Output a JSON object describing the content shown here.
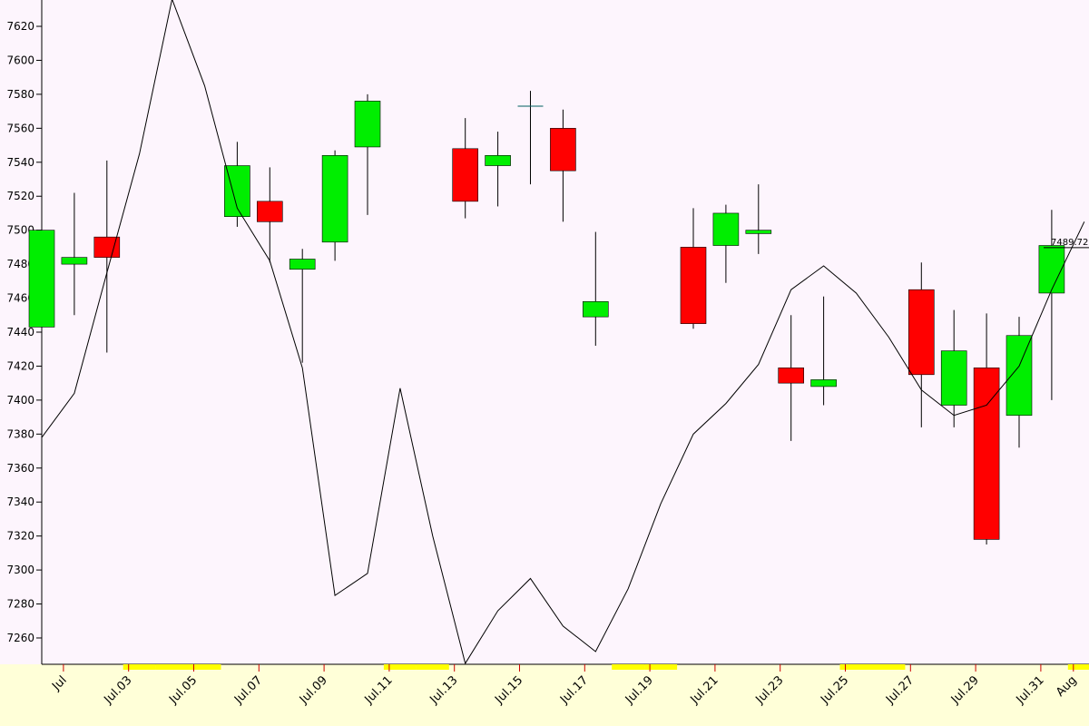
{
  "chart_data": {
    "type": "candlestick",
    "categories": [
      null,
      "Jul",
      null,
      "Jul.03",
      null,
      "Jul.05",
      null,
      "Jul.07",
      null,
      "Jul.09",
      null,
      "Jul.11",
      null,
      "Jul.13",
      null,
      "Jul.15",
      null,
      "Jul.17",
      null,
      "Jul.19",
      null,
      "Jul.21",
      null,
      "Jul.23",
      null,
      "Jul.25",
      null,
      "Jul.27",
      null,
      "Jul.29",
      null,
      "Jul.31",
      "Aug"
    ],
    "open": [
      7443,
      7480,
      7496,
      null,
      null,
      null,
      7508,
      7517,
      7477,
      7493,
      7549,
      null,
      null,
      7548,
      7538,
      7573,
      7560,
      7449,
      null,
      null,
      7490,
      7491,
      7498,
      7419,
      7408,
      null,
      null,
      7465,
      7397,
      7419,
      7391,
      7463,
      null
    ],
    "high": [
      7500,
      7522,
      7541,
      null,
      null,
      null,
      7552,
      7537,
      7489,
      7547,
      7580,
      null,
      null,
      7566,
      7558,
      7582,
      7571,
      7499,
      null,
      null,
      7513,
      7515,
      7527,
      7450,
      7461,
      null,
      null,
      7481,
      7453,
      7451,
      7449,
      7512,
      null
    ],
    "low": [
      7442,
      7450,
      7428,
      null,
      null,
      null,
      7502,
      7481,
      7422,
      7482,
      7509,
      null,
      null,
      7507,
      7514,
      7527,
      7505,
      7432,
      null,
      null,
      7442,
      7469,
      7486,
      7376,
      7397,
      null,
      null,
      7384,
      7384,
      7315,
      7372,
      7400,
      null
    ],
    "close": [
      7500,
      7484,
      7484,
      null,
      null,
      null,
      7538,
      7505,
      7483,
      7544,
      7576,
      null,
      null,
      7517,
      7544,
      7573,
      7535,
      7458,
      null,
      null,
      7445,
      7510,
      7500,
      7410,
      7412,
      null,
      null,
      7415,
      7429,
      7318,
      7438,
      7491,
      null
    ],
    "up_color": "#00ee00",
    "down_color": "#ff0000",
    "line": {
      "color": "#000000",
      "values": [
        7378,
        7404,
        7475,
        7545,
        7636,
        7585,
        7513,
        7482,
        7419,
        7285,
        7298,
        7407,
        7320,
        7245,
        7276,
        7295,
        7267,
        7252,
        7289,
        7339,
        7380,
        7398,
        7421,
        7465,
        7479,
        7463,
        7437,
        7406,
        7391,
        7397,
        7420,
        7465,
        7505
      ]
    },
    "last_price": {
      "value": 7489.72,
      "label": "7489.72"
    },
    "ylim": [
      7244.5,
      7635.5
    ],
    "yticks": [
      7260,
      7280,
      7300,
      7320,
      7340,
      7360,
      7380,
      7400,
      7420,
      7440,
      7460,
      7480,
      7500,
      7520,
      7540,
      7560,
      7580,
      7600,
      7620
    ]
  }
}
